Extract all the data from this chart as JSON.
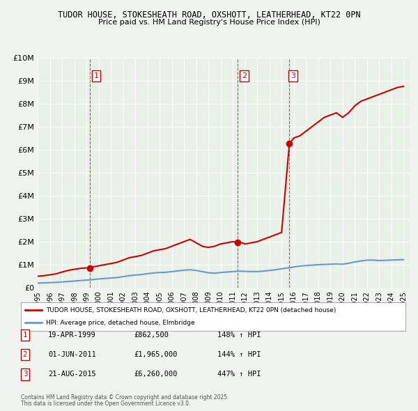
{
  "title1": "TUDOR HOUSE, STOKESHEATH ROAD, OXSHOTT, LEATHERHEAD, KT22 0PN",
  "title2": "Price paid vs. HM Land Registry's House Price Index (HPI)",
  "background_color": "#f0f4f0",
  "plot_bg_color": "#e8f0e8",
  "grid_color": "#ffffff",
  "red_line_color": "#cc0000",
  "blue_line_color": "#6699cc",
  "ylabel_ticks": [
    "£0",
    "£1M",
    "£2M",
    "£3M",
    "£4M",
    "£5M",
    "£6M",
    "£7M",
    "£8M",
    "£9M",
    "£10M"
  ],
  "ytick_values": [
    0,
    1000000,
    2000000,
    3000000,
    4000000,
    5000000,
    6000000,
    7000000,
    8000000,
    9000000,
    10000000
  ],
  "ylim": [
    0,
    10000000
  ],
  "xlim_start": 1995.0,
  "xlim_end": 2025.5,
  "sale_dates": [
    1999.3,
    2011.42,
    2015.64
  ],
  "sale_labels": [
    "1",
    "2",
    "3"
  ],
  "sale_prices": [
    862500,
    1965000,
    6260000
  ],
  "sale_info": [
    {
      "num": "1",
      "date": "19-APR-1999",
      "price": "£862,500",
      "pct": "148% ↑ HPI"
    },
    {
      "num": "2",
      "date": "01-JUN-2011",
      "price": "£1,965,000",
      "pct": "144% ↑ HPI"
    },
    {
      "num": "3",
      "date": "21-AUG-2015",
      "price": "£6,260,000",
      "pct": "447% ↑ HPI"
    }
  ],
  "legend_label_red": "TUDOR HOUSE, STOKESHEATH ROAD, OXSHOTT, LEATHERHEAD, KT22 0PN (detached house)",
  "legend_label_blue": "HPI: Average price, detached house, Elmbridge",
  "footer1": "Contains HM Land Registry data © Crown copyright and database right 2025.",
  "footer2": "This data is licensed under the Open Government Licence v3.0.",
  "red_line_data_x": [
    1995.0,
    1995.5,
    1996.0,
    1996.5,
    1997.0,
    1997.5,
    1998.0,
    1998.5,
    1999.0,
    1999.3,
    1999.5,
    2000.0,
    2000.5,
    2001.0,
    2001.5,
    2002.0,
    2002.5,
    2003.0,
    2003.5,
    2004.0,
    2004.5,
    2005.0,
    2005.5,
    2006.0,
    2006.5,
    2007.0,
    2007.5,
    2008.0,
    2008.5,
    2009.0,
    2009.5,
    2010.0,
    2010.5,
    2011.0,
    2011.42,
    2011.5,
    2012.0,
    2012.5,
    2013.0,
    2013.5,
    2014.0,
    2014.5,
    2015.0,
    2015.64,
    2016.0,
    2016.5,
    2017.0,
    2017.5,
    2018.0,
    2018.5,
    2019.0,
    2019.5,
    2020.0,
    2020.5,
    2021.0,
    2021.5,
    2022.0,
    2022.5,
    2023.0,
    2023.5,
    2024.0,
    2024.5,
    2025.0
  ],
  "red_line_data_y": [
    500000,
    520000,
    560000,
    600000,
    680000,
    750000,
    800000,
    840000,
    860000,
    862500,
    900000,
    950000,
    1000000,
    1050000,
    1100000,
    1200000,
    1300000,
    1350000,
    1400000,
    1500000,
    1600000,
    1650000,
    1700000,
    1800000,
    1900000,
    2000000,
    2100000,
    1950000,
    1800000,
    1750000,
    1800000,
    1900000,
    1950000,
    2000000,
    1965000,
    2000000,
    1900000,
    1950000,
    2000000,
    2100000,
    2200000,
    2300000,
    2400000,
    6260000,
    6500000,
    6600000,
    6800000,
    7000000,
    7200000,
    7400000,
    7500000,
    7600000,
    7400000,
    7600000,
    7900000,
    8100000,
    8200000,
    8300000,
    8400000,
    8500000,
    8600000,
    8700000,
    8750000
  ],
  "blue_line_data_x": [
    1995.0,
    1995.5,
    1996.0,
    1996.5,
    1997.0,
    1997.5,
    1998.0,
    1998.5,
    1999.0,
    1999.5,
    2000.0,
    2000.5,
    2001.0,
    2001.5,
    2002.0,
    2002.5,
    2003.0,
    2003.5,
    2004.0,
    2004.5,
    2005.0,
    2005.5,
    2006.0,
    2006.5,
    2007.0,
    2007.5,
    2008.0,
    2008.5,
    2009.0,
    2009.5,
    2010.0,
    2010.5,
    2011.0,
    2011.5,
    2012.0,
    2012.5,
    2013.0,
    2013.5,
    2014.0,
    2014.5,
    2015.0,
    2015.5,
    2016.0,
    2016.5,
    2017.0,
    2017.5,
    2018.0,
    2018.5,
    2019.0,
    2019.5,
    2020.0,
    2020.5,
    2021.0,
    2021.5,
    2022.0,
    2022.5,
    2023.0,
    2023.5,
    2024.0,
    2024.5,
    2025.0
  ],
  "blue_line_data_y": [
    200000,
    210000,
    220000,
    230000,
    250000,
    270000,
    290000,
    310000,
    330000,
    350000,
    380000,
    400000,
    420000,
    440000,
    480000,
    520000,
    550000,
    570000,
    610000,
    640000,
    660000,
    670000,
    700000,
    730000,
    760000,
    780000,
    750000,
    700000,
    650000,
    630000,
    660000,
    680000,
    700000,
    720000,
    710000,
    700000,
    700000,
    720000,
    750000,
    780000,
    820000,
    860000,
    900000,
    940000,
    960000,
    980000,
    1000000,
    1010000,
    1020000,
    1030000,
    1020000,
    1060000,
    1120000,
    1160000,
    1200000,
    1200000,
    1180000,
    1190000,
    1200000,
    1210000,
    1220000
  ],
  "vline_x": [
    1999.3,
    2011.42,
    2015.64
  ],
  "vline_color": "#cc0000",
  "xtick_years": [
    1995,
    1996,
    1997,
    1998,
    1999,
    2000,
    2001,
    2002,
    2003,
    2004,
    2005,
    2006,
    2007,
    2008,
    2009,
    2010,
    2011,
    2012,
    2013,
    2014,
    2015,
    2016,
    2017,
    2018,
    2019,
    2020,
    2021,
    2022,
    2023,
    2024,
    2025
  ]
}
